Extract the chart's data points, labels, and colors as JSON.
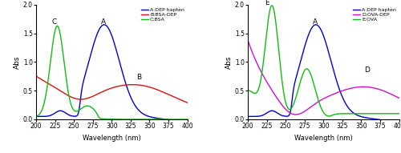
{
  "xlim": [
    200,
    400
  ],
  "ylim": [
    0,
    2.0
  ],
  "xlabel": "Wavelength (nm)",
  "ylabel": "Abs",
  "yticks": [
    0.0,
    0.5,
    1.0,
    1.5,
    2.0
  ],
  "left_legend": [
    "A:DEP hapten",
    "B:BSA-DEP",
    "C:BSA"
  ],
  "right_legend": [
    "A:DEP hapten",
    "D:OVA-DEP",
    "E:OVA"
  ],
  "left_colors": [
    "#0000cc",
    "#dd1111",
    "#11bb11"
  ],
  "right_colors": [
    "#0000cc",
    "#cc11cc",
    "#11bb11"
  ],
  "left_labels": {
    "A": [
      289,
      1.6
    ],
    "B": [
      336,
      0.63
    ],
    "C": [
      224,
      1.6
    ]
  },
  "right_labels": {
    "A": [
      289,
      1.6
    ],
    "D": [
      358,
      0.76
    ],
    "E": [
      225,
      1.97
    ]
  }
}
